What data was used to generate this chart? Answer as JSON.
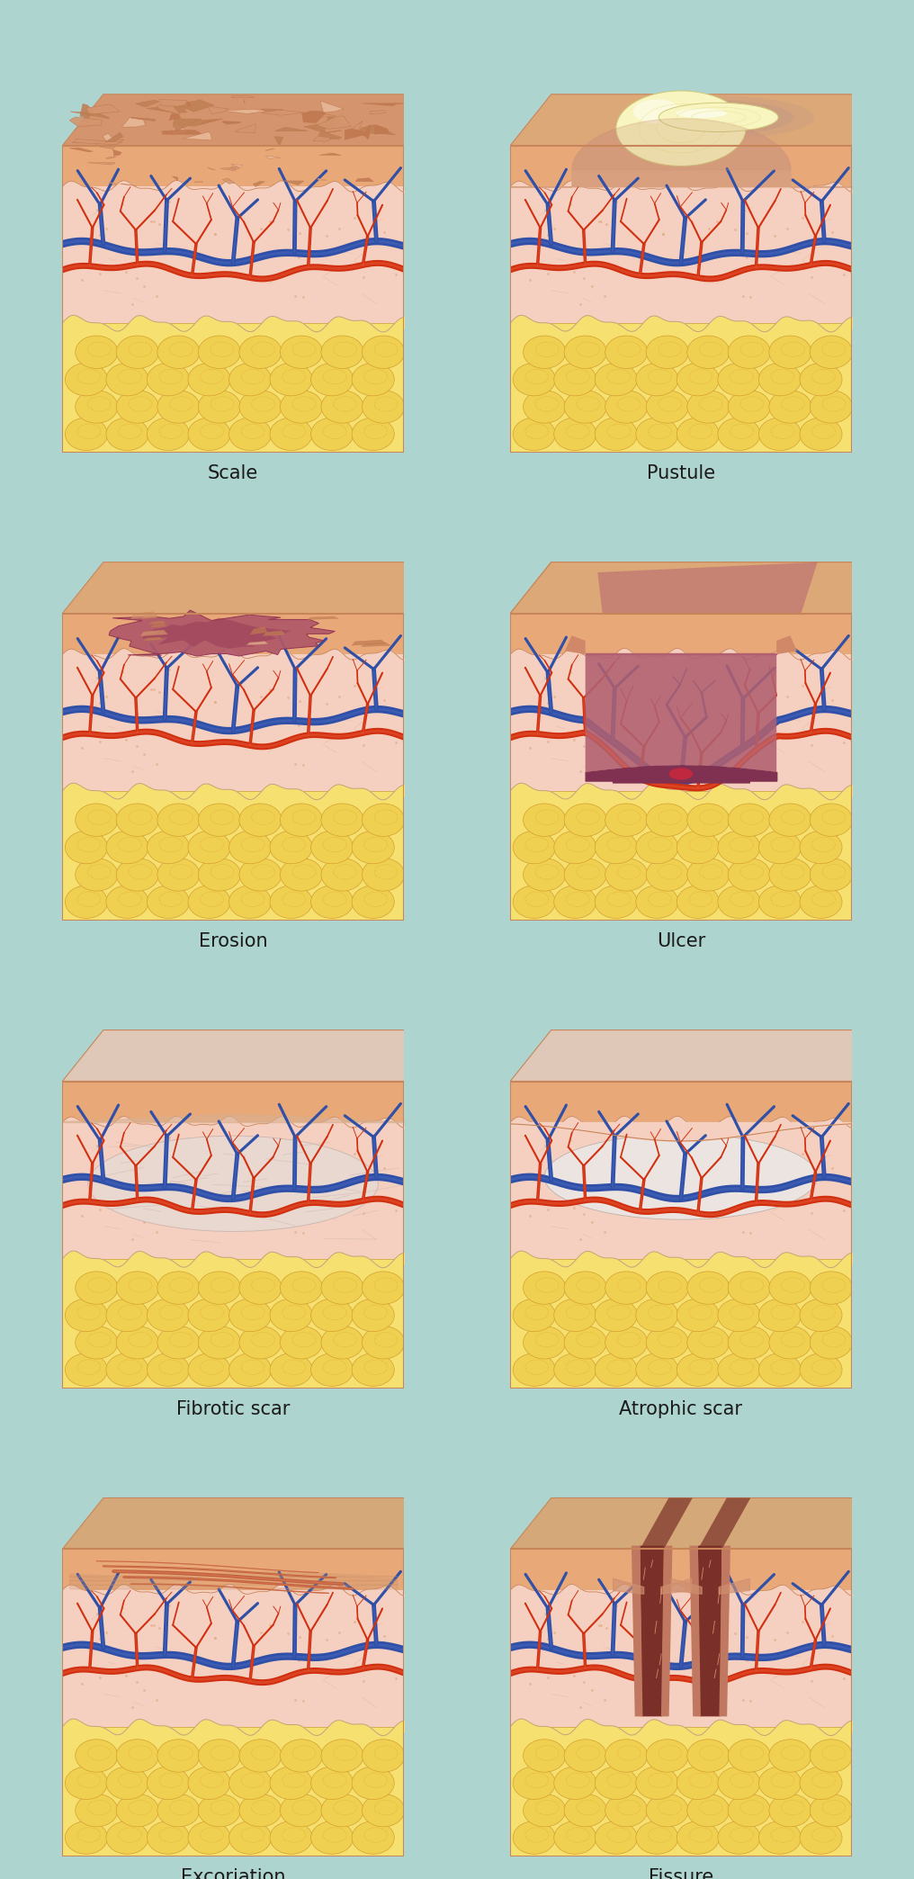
{
  "bg_color": "#aed4cf",
  "labels": [
    "Scale",
    "Pustule",
    "Erosion",
    "Ulcer",
    "Fibrotic scar",
    "Atrophic scar",
    "Excoriation",
    "Fissure"
  ],
  "label_fontsize": 15,
  "fig_width": 10.16,
  "fig_height": 20.88,
  "skin_top_color": "#e8a878",
  "skin_top_edge": "#c8855a",
  "skin_side_color": "#dda070",
  "epidermis_color": "#e8a878",
  "dermis_color": "#f0c8b0",
  "dermis_pink": "#f5d0c0",
  "fat_color": "#f5e070",
  "fat_cell_color": "#f0d050",
  "fat_edge": "#d4a030",
  "artery_color": "#d03010",
  "artery_highlight": "#f06040",
  "vein_color": "#3050a8",
  "vein_highlight": "#5878d0",
  "panel_border_color": "#c8855a",
  "wavy_line_color": "#c8a080",
  "scale_colors": [
    "#d4956e",
    "#c07850",
    "#e8b898",
    "#bf8055"
  ],
  "pustule_pus_color": "#f8f5c0",
  "pustule_skin_color": "#d4a080",
  "pustule_ring_color": "#c09888",
  "erosion_color": "#b05868",
  "erosion_dark": "#903050",
  "ulcer_color": "#b06070",
  "ulcer_dark": "#803050",
  "ulcer_rim": "#d08868",
  "scar_color": "#e8d8d0",
  "scar_fibrous": "#d0b8b0",
  "atrophic_color": "#ece4e0",
  "scratch_color": "#c06040",
  "fissure_dark": "#7a3028",
  "fissure_wall": "#c07860"
}
